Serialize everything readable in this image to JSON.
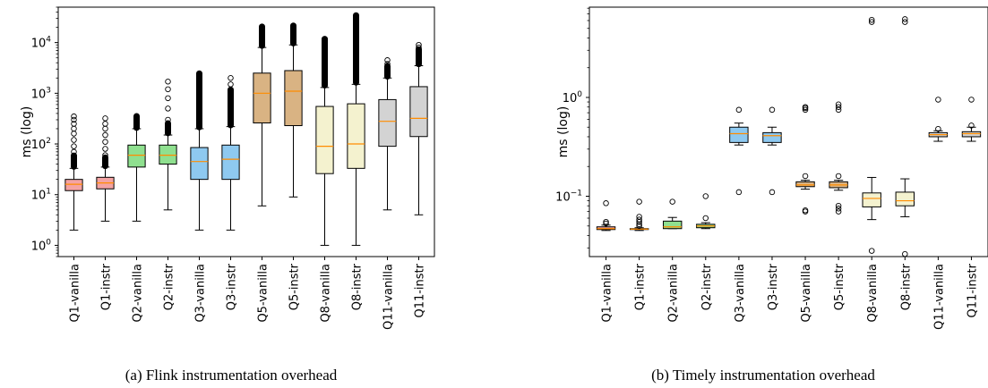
{
  "chart_data": [
    {
      "type": "box",
      "caption": "(a) Flink instrumentation overhead",
      "ylabel": "ms (log)",
      "yscale": "log",
      "ylim": [
        0.6,
        50000
      ],
      "yticks": [
        {
          "v": 1,
          "b": "10",
          "e": "0"
        },
        {
          "v": 10,
          "b": "10",
          "e": "1"
        },
        {
          "v": 100,
          "b": "10",
          "e": "2"
        },
        {
          "v": 1000,
          "b": "10",
          "e": "3"
        },
        {
          "v": 10000,
          "b": "10",
          "e": "4"
        }
      ],
      "categories": [
        "Q1-vanilla",
        "Q1-instr",
        "Q2-vanilla",
        "Q2-instr",
        "Q3-vanilla",
        "Q3-instr",
        "Q5-vanilla",
        "Q5-instr",
        "Q8-vanilla",
        "Q8-instr",
        "Q11-vanilla",
        "Q11-instr"
      ],
      "boxes": [
        {
          "color": "#f4a3a3",
          "wlo": 2,
          "q1": 12,
          "med": 16,
          "q3": 20,
          "whi": 33,
          "outliers": [
            40,
            55,
            70,
            90,
            120,
            160,
            200,
            250,
            300,
            350
          ],
          "cluster": [
            35,
            60
          ]
        },
        {
          "color": "#f4a3a3",
          "wlo": 3,
          "q1": 13,
          "med": 17,
          "q3": 22,
          "whi": 35,
          "outliers": [
            45,
            60,
            80,
            110,
            150,
            200,
            250,
            320
          ],
          "cluster": [
            36,
            55
          ]
        },
        {
          "color": "#8fe08f",
          "wlo": 3,
          "q1": 35,
          "med": 60,
          "q3": 95,
          "whi": 200,
          "outliers": [
            220,
            260,
            300,
            350
          ],
          "cluster": [
            205,
            360
          ]
        },
        {
          "color": "#8fe08f",
          "wlo": 5,
          "q1": 40,
          "med": 60,
          "q3": 95,
          "whi": 150,
          "outliers": [
            200,
            300,
            500,
            800,
            1200,
            1700
          ],
          "cluster": [
            160,
            260
          ]
        },
        {
          "color": "#8ec9f0",
          "wlo": 2,
          "q1": 20,
          "med": 45,
          "q3": 85,
          "whi": 200,
          "outliers": [],
          "cluster": [
            210,
            2500
          ]
        },
        {
          "color": "#8ec9f0",
          "wlo": 2,
          "q1": 20,
          "med": 50,
          "q3": 95,
          "whi": 220,
          "outliers": [
            1500,
            2000
          ],
          "cluster": [
            230,
            1200
          ]
        },
        {
          "color": "#d9b383",
          "wlo": 6,
          "q1": 260,
          "med": 1000,
          "q3": 2500,
          "whi": 8000,
          "outliers": [],
          "cluster": [
            8500,
            21000
          ]
        },
        {
          "color": "#d9b383",
          "wlo": 9,
          "q1": 230,
          "med": 1100,
          "q3": 2800,
          "whi": 9000,
          "outliers": [],
          "cluster": [
            9500,
            22000
          ]
        },
        {
          "color": "#f4f2cf",
          "wlo": 1,
          "q1": 26,
          "med": 90,
          "q3": 550,
          "whi": 1300,
          "outliers": [],
          "cluster": [
            1400,
            12000
          ]
        },
        {
          "color": "#f4f2cf",
          "wlo": 1,
          "q1": 33,
          "med": 100,
          "q3": 620,
          "whi": 1500,
          "outliers": [],
          "cluster": [
            1600,
            35000
          ]
        },
        {
          "color": "#d3d3d3",
          "wlo": 5,
          "q1": 90,
          "med": 280,
          "q3": 750,
          "whi": 2000,
          "outliers": [
            2500,
            3000,
            3800,
            4500
          ],
          "cluster": [
            2100,
            3500
          ]
        },
        {
          "color": "#d3d3d3",
          "wlo": 4,
          "q1": 140,
          "med": 320,
          "q3": 1350,
          "whi": 3500,
          "outliers": [
            5000,
            6000,
            7000,
            8000,
            9000
          ],
          "cluster": [
            3700,
            7500
          ]
        }
      ]
    },
    {
      "type": "box",
      "caption": "(b) Timely instrumentation overhead",
      "ylabel": "ms (log)",
      "yscale": "log",
      "ylim": [
        0.0245,
        8.2
      ],
      "yticks": [
        {
          "v": 0.1,
          "b": "10",
          "e": "−1"
        },
        {
          "v": 1,
          "b": "10",
          "e": "0"
        }
      ],
      "categories": [
        "Q1-vanilla",
        "Q1-instr",
        "Q2-vanilla",
        "Q2-instr",
        "Q3-vanilla",
        "Q3-instr",
        "Q5-vanilla",
        "Q5-instr",
        "Q8-vanilla",
        "Q8-instr",
        "Q11-vanilla",
        "Q11-instr"
      ],
      "boxes": [
        {
          "color": "#f4a3a3",
          "wlo": 0.045,
          "q1": 0.046,
          "med": 0.047,
          "q3": 0.049,
          "whi": 0.051,
          "outliers": [
            0.053,
            0.055,
            0.085
          ],
          "cluster": []
        },
        {
          "color": "#f4a3a3",
          "wlo": 0.045,
          "q1": 0.046,
          "med": 0.0465,
          "q3": 0.047,
          "whi": 0.048,
          "outliers": [
            0.05,
            0.052,
            0.055,
            0.058,
            0.062,
            0.088
          ],
          "cluster": []
        },
        {
          "color": "#8fe08f",
          "wlo": 0.047,
          "q1": 0.047,
          "med": 0.049,
          "q3": 0.056,
          "whi": 0.061,
          "outliers": [
            0.088
          ],
          "cluster": []
        },
        {
          "color": "#8fe08f",
          "wlo": 0.047,
          "q1": 0.048,
          "med": 0.05,
          "q3": 0.052,
          "whi": 0.054,
          "outliers": [
            0.06,
            0.1
          ],
          "cluster": []
        },
        {
          "color": "#8ec9f0",
          "wlo": 0.33,
          "q1": 0.35,
          "med": 0.43,
          "q3": 0.5,
          "whi": 0.55,
          "outliers": [
            0.11,
            0.75
          ],
          "cluster": []
        },
        {
          "color": "#8ec9f0",
          "wlo": 0.33,
          "q1": 0.35,
          "med": 0.41,
          "q3": 0.44,
          "whi": 0.5,
          "outliers": [
            0.11,
            0.75
          ],
          "cluster": []
        },
        {
          "color": "#d9b383",
          "wlo": 0.118,
          "q1": 0.125,
          "med": 0.13,
          "q3": 0.14,
          "whi": 0.145,
          "outliers": [
            0.07,
            0.072,
            0.16,
            0.75,
            0.78,
            0.8
          ],
          "cluster": []
        },
        {
          "color": "#d9b383",
          "wlo": 0.115,
          "q1": 0.122,
          "med": 0.13,
          "q3": 0.14,
          "whi": 0.145,
          "outliers": [
            0.07,
            0.075,
            0.08,
            0.16,
            0.75,
            0.8,
            0.85
          ],
          "cluster": []
        },
        {
          "color": "#f4f2cf",
          "wlo": 0.058,
          "q1": 0.078,
          "med": 0.095,
          "q3": 0.108,
          "whi": 0.155,
          "outliers": [
            0.028,
            5.8,
            6.1
          ],
          "cluster": []
        },
        {
          "color": "#f4f2cf",
          "wlo": 0.062,
          "q1": 0.08,
          "med": 0.09,
          "q3": 0.11,
          "whi": 0.15,
          "outliers": [
            0.026,
            5.8,
            6.2
          ],
          "cluster": []
        },
        {
          "color": "#d3d3d3",
          "wlo": 0.36,
          "q1": 0.4,
          "med": 0.42,
          "q3": 0.44,
          "whi": 0.46,
          "outliers": [
            0.48,
            0.95
          ],
          "cluster": []
        },
        {
          "color": "#d3d3d3",
          "wlo": 0.36,
          "q1": 0.4,
          "med": 0.43,
          "q3": 0.45,
          "whi": 0.5,
          "outliers": [
            0.52,
            0.95
          ],
          "cluster": []
        }
      ]
    }
  ]
}
